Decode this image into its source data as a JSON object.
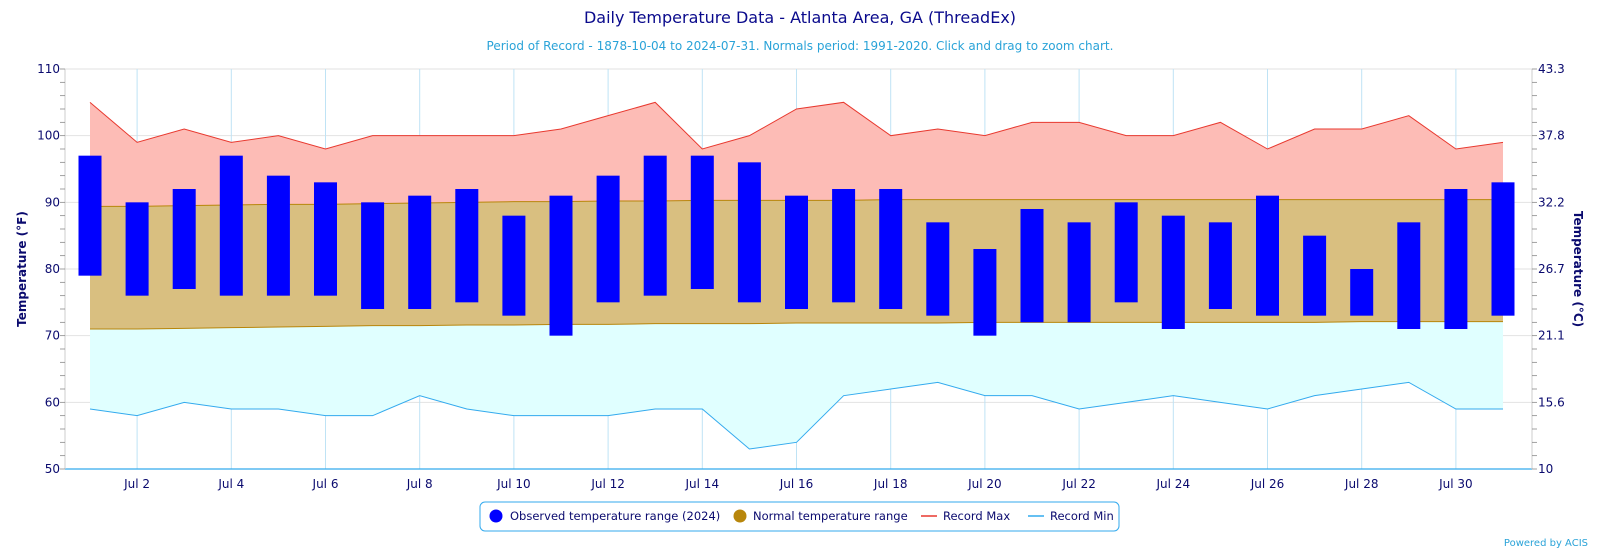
{
  "chart_data": {
    "type": "bar",
    "title": "Daily Temperature Data - Atlanta Area, GA (ThreadEx)",
    "subtitle": "Period of Record - 1878-10-04 to 2024-07-31. Normals period: 1991-2020. Click and drag to zoom chart.",
    "ylabel": "Temperature (°F)",
    "ylabel_right": "Temperature (°C)",
    "ylim": [
      50,
      110
    ],
    "y_ticks": [
      50,
      60,
      70,
      80,
      90,
      100,
      110
    ],
    "y_ticks_right": [
      "10",
      "15.6",
      "21.1",
      "26.7",
      "32.2",
      "37.8",
      "43.3"
    ],
    "grid": true,
    "legend_position": "bottom-center",
    "days": [
      1,
      2,
      3,
      4,
      5,
      6,
      7,
      8,
      9,
      10,
      11,
      12,
      13,
      14,
      15,
      16,
      17,
      18,
      19,
      20,
      21,
      22,
      23,
      24,
      25,
      26,
      27,
      28,
      29,
      30,
      31
    ],
    "x_tick_labels": [
      {
        "day": 2,
        "label": "Jul 2"
      },
      {
        "day": 4,
        "label": "Jul 4"
      },
      {
        "day": 6,
        "label": "Jul 6"
      },
      {
        "day": 8,
        "label": "Jul 8"
      },
      {
        "day": 10,
        "label": "Jul 10"
      },
      {
        "day": 12,
        "label": "Jul 12"
      },
      {
        "day": 14,
        "label": "Jul 14"
      },
      {
        "day": 16,
        "label": "Jul 16"
      },
      {
        "day": 18,
        "label": "Jul 18"
      },
      {
        "day": 20,
        "label": "Jul 20"
      },
      {
        "day": 22,
        "label": "Jul 22"
      },
      {
        "day": 24,
        "label": "Jul 24"
      },
      {
        "day": 26,
        "label": "Jul 26"
      },
      {
        "day": 28,
        "label": "Jul 28"
      },
      {
        "day": 30,
        "label": "Jul 30"
      }
    ],
    "series": [
      {
        "name": "Observed temperature range (2024)",
        "color": "#0000ff",
        "high": [
          97,
          90,
          92,
          97,
          94,
          93,
          90,
          91,
          92,
          88,
          91,
          94,
          97,
          97,
          96,
          91,
          92,
          92,
          87,
          83,
          89,
          87,
          90,
          88,
          87,
          91,
          85,
          80,
          87,
          92,
          93
        ],
        "low": [
          79,
          76,
          77,
          76,
          76,
          76,
          74,
          74,
          75,
          73,
          70,
          75,
          76,
          77,
          75,
          74,
          75,
          74,
          73,
          70,
          72,
          72,
          75,
          71,
          74,
          73,
          73,
          73,
          71,
          71,
          73
        ]
      },
      {
        "name": "Normal temperature range",
        "color": "#b8860b",
        "fill": "#d9bf80",
        "high": [
          89.4,
          89.4,
          89.5,
          89.6,
          89.7,
          89.7,
          89.8,
          89.9,
          90.0,
          90.1,
          90.1,
          90.2,
          90.2,
          90.3,
          90.3,
          90.3,
          90.3,
          90.4,
          90.4,
          90.4,
          90.4,
          90.4,
          90.4,
          90.4,
          90.4,
          90.4,
          90.4,
          90.4,
          90.4,
          90.4,
          90.4
        ],
        "low": [
          71.0,
          71.0,
          71.1,
          71.2,
          71.3,
          71.4,
          71.5,
          71.5,
          71.6,
          71.6,
          71.7,
          71.7,
          71.8,
          71.8,
          71.8,
          71.9,
          71.9,
          71.9,
          71.9,
          72.0,
          72.0,
          72.0,
          72.0,
          72.0,
          72.0,
          72.0,
          72.0,
          72.1,
          72.1,
          72.1,
          72.1
        ]
      },
      {
        "name": "Record Max",
        "color": "#e8392f",
        "fill": "#fdbcb6",
        "values": [
          105,
          99,
          101,
          99,
          100,
          98,
          100,
          100,
          100,
          100,
          101,
          103,
          105,
          98,
          100,
          104,
          105,
          100,
          101,
          100,
          102,
          102,
          100,
          100,
          102,
          98,
          101,
          101,
          103,
          98,
          99
        ]
      },
      {
        "name": "Record Min",
        "color": "#33aaee",
        "fill": "#e0ffff",
        "values": [
          59,
          58,
          60,
          59,
          59,
          58,
          58,
          61,
          59,
          58,
          58,
          58,
          59,
          59,
          53,
          54,
          61,
          62,
          63,
          61,
          61,
          59,
          60,
          61,
          60,
          59,
          61,
          62,
          63,
          59,
          59
        ]
      }
    ]
  },
  "footer": {
    "credit": "Powered by ACIS"
  }
}
